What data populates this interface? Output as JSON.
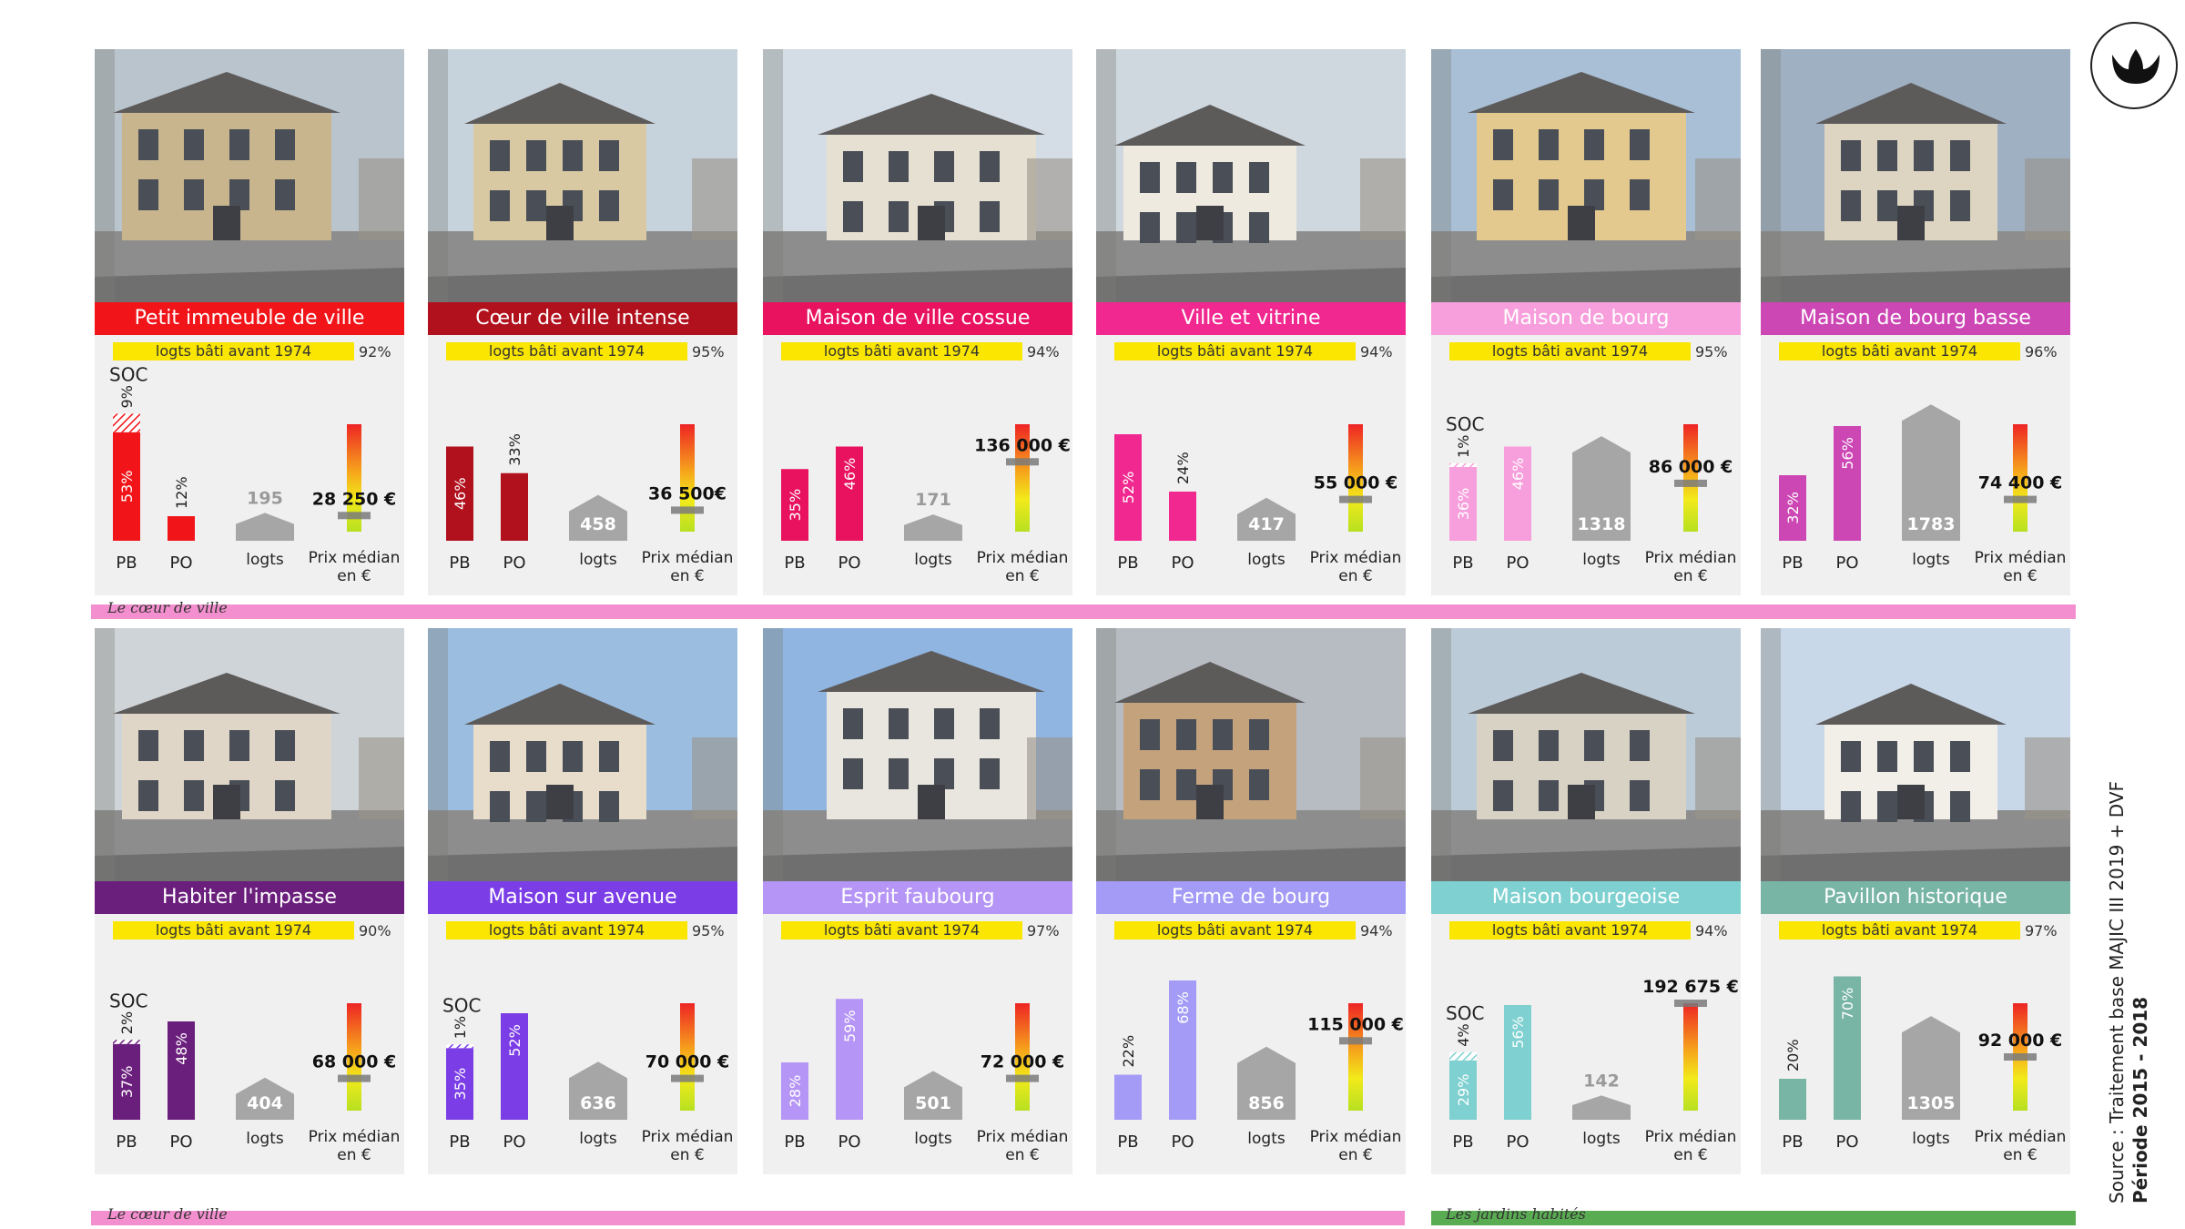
{
  "ylabel_text": "logts bâti avant 1974",
  "labels": {
    "pb": "PB",
    "po": "PO",
    "logts": "logts",
    "prix1": "Prix médian",
    "prix2": "en €",
    "soc": "SOC"
  },
  "bands": [
    {
      "label": "Le cœur de ville",
      "color": "#f48fcf"
    },
    {
      "label": "Le cœur de ville",
      "color": "#f48fcf"
    },
    {
      "label": "Les jardins habités",
      "color": "#5aac52"
    }
  ],
  "source": {
    "line1": "Source : Traitement base MAJIC III 2019 + DVF",
    "line2": "Période 2015 - 2018"
  },
  "logo_icon": "tulip-logo-icon",
  "chart_data": [
    {
      "type": "bar",
      "title": "Petit immeuble de ville",
      "color": "#f11519",
      "pre1974": "92%",
      "categories": [
        "PB",
        "PO"
      ],
      "pb": {
        "value": 53,
        "label": "53%"
      },
      "soc": {
        "value": 9,
        "label": "9%"
      },
      "po": {
        "value": 12,
        "label": "12%"
      },
      "logts": 195,
      "prix": "28 250 €",
      "prix_level": 0.15,
      "photo": "building-photo"
    },
    {
      "type": "bar",
      "title": "Cœur de ville intense",
      "color": "#b1101d",
      "pre1974": "95%",
      "categories": [
        "PB",
        "PO"
      ],
      "pb": {
        "value": 46,
        "label": "46%"
      },
      "po": {
        "value": 33,
        "label": "33%"
      },
      "logts": 458,
      "prix": "36 500€",
      "prix_level": 0.2,
      "photo": "building-photo"
    },
    {
      "type": "bar",
      "title": "Maison de ville cossue",
      "color": "#e8125e",
      "pre1974": "94%",
      "categories": [
        "PB",
        "PO"
      ],
      "pb": {
        "value": 35,
        "label": "35%"
      },
      "po": {
        "value": 46,
        "label": "46%"
      },
      "logts": 171,
      "prix": "136 000 €",
      "prix_level": 0.65,
      "photo": "building-photo"
    },
    {
      "type": "bar",
      "title": "Ville et vitrine",
      "color": "#f0288f",
      "pre1974": "94%",
      "categories": [
        "PB",
        "PO"
      ],
      "pb": {
        "value": 52,
        "label": "52%"
      },
      "po": {
        "value": 24,
        "label": "24%"
      },
      "logts": 417,
      "prix": "55 000 €",
      "prix_level": 0.3,
      "photo": "building-photo"
    },
    {
      "type": "bar",
      "title": "Maison de bourg",
      "color": "#f79fdc",
      "pre1974": "95%",
      "categories": [
        "PB",
        "PO"
      ],
      "pb": {
        "value": 36,
        "label": "36%"
      },
      "soc": {
        "value": 1,
        "label": "1%"
      },
      "po": {
        "value": 46,
        "label": "46%"
      },
      "logts": 1318,
      "prix": "86 000 €",
      "prix_level": 0.45,
      "photo": "building-photo"
    },
    {
      "type": "bar",
      "title": "Maison de bourg basse",
      "color": "#cc46b4",
      "pre1974": "96%",
      "categories": [
        "PB",
        "PO"
      ],
      "pb": {
        "value": 32,
        "label": "32%"
      },
      "po": {
        "value": 56,
        "label": "56%"
      },
      "logts": 1783,
      "prix": "74 400 €",
      "prix_level": 0.3,
      "photo": "building-photo"
    },
    {
      "type": "bar",
      "title": "Habiter l'impasse",
      "color": "#6b1f7c",
      "pre1974": "90%",
      "categories": [
        "PB",
        "PO"
      ],
      "pb": {
        "value": 37,
        "label": "37%"
      },
      "soc": {
        "value": 2,
        "label": "2%"
      },
      "po": {
        "value": 48,
        "label": "48%"
      },
      "logts": 404,
      "prix": "68 000 €",
      "prix_level": 0.3,
      "photo": "building-photo"
    },
    {
      "type": "bar",
      "title": "Maison sur avenue",
      "color": "#7b3de6",
      "pre1974": "95%",
      "categories": [
        "PB",
        "PO"
      ],
      "pb": {
        "value": 35,
        "label": "35%"
      },
      "soc": {
        "value": 1,
        "label": "1%"
      },
      "po": {
        "value": 52,
        "label": "52%"
      },
      "logts": 636,
      "prix": "70 000 €",
      "prix_level": 0.3,
      "photo": "building-photo"
    },
    {
      "type": "bar",
      "title": "Esprit faubourg",
      "color": "#b595f5",
      "pre1974": "97%",
      "categories": [
        "PB",
        "PO"
      ],
      "pb": {
        "value": 28,
        "label": "28%"
      },
      "po": {
        "value": 59,
        "label": "59%"
      },
      "logts": 501,
      "prix": "72 000 €",
      "prix_level": 0.3,
      "photo": "building-photo"
    },
    {
      "type": "bar",
      "title": "Ferme de bourg",
      "color": "#a39bf5",
      "pre1974": "94%",
      "categories": [
        "PB",
        "PO"
      ],
      "pb": {
        "value": 22,
        "label": "22%"
      },
      "po": {
        "value": 68,
        "label": "68%"
      },
      "logts": 856,
      "prix": "115 000 €",
      "prix_level": 0.65,
      "photo": "building-photo"
    },
    {
      "type": "bar",
      "title": "Maison bourgeoise",
      "color": "#7fd0d0",
      "pre1974": "94%",
      "categories": [
        "PB",
        "PO"
      ],
      "pb": {
        "value": 29,
        "label": "29%"
      },
      "soc": {
        "value": 4,
        "label": "4%"
      },
      "po": {
        "value": 56,
        "label": "56%"
      },
      "logts": 142,
      "prix": "192 675 €",
      "prix_level": 1.0,
      "photo": "building-photo"
    },
    {
      "type": "bar",
      "title": "Pavillon historique",
      "color": "#78b5a5",
      "pre1974": "97%",
      "categories": [
        "PB",
        "PO"
      ],
      "pb": {
        "value": 20,
        "label": "20%"
      },
      "po": {
        "value": 70,
        "label": "70%"
      },
      "logts": 1305,
      "prix": "92 000 €",
      "prix_level": 0.5,
      "photo": "building-photo"
    }
  ]
}
